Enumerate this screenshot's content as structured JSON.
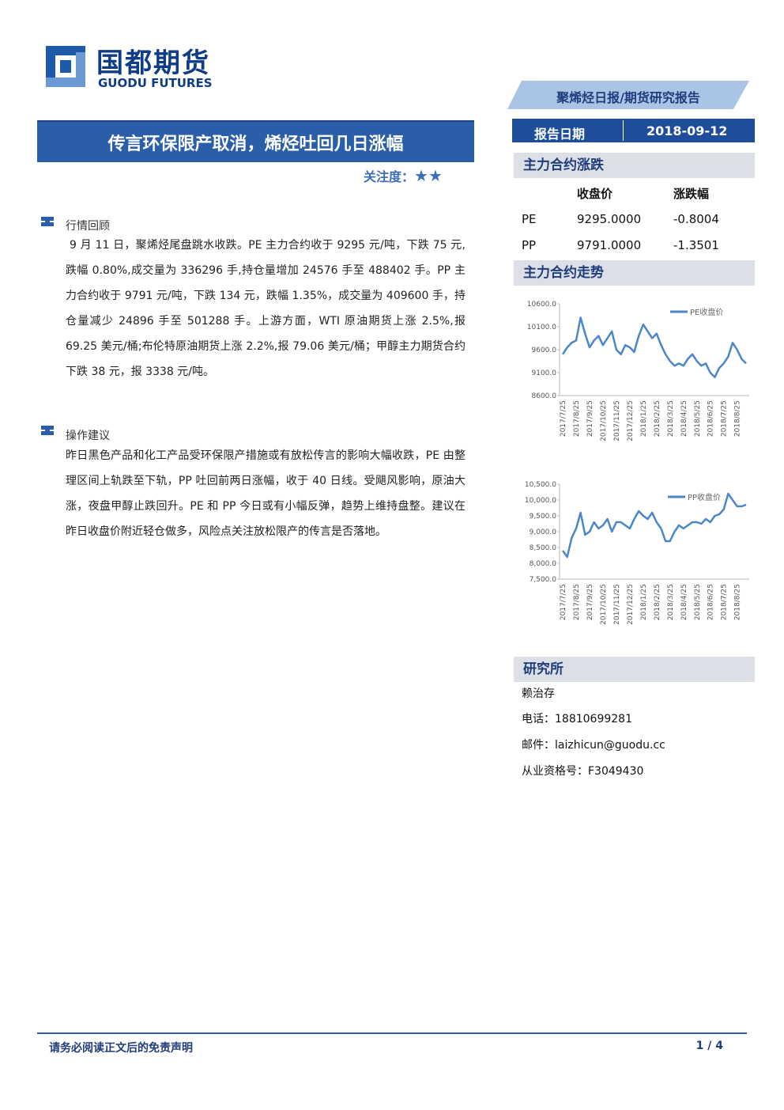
{
  "header": {
    "company_cn": "国都期货",
    "company_en": "GUODU FUTURES",
    "report_type": "聚烯烃日报/期货研究报告",
    "date_label": "报告日期",
    "date": "2018-09-12"
  },
  "title": "传言环保限产取消，烯烃吐回几日涨幅",
  "attention": {
    "label": "关注度：",
    "stars": "★★"
  },
  "sections": [
    {
      "heading": "行情回顾",
      "paragraph": "9 月 11 日，聚烯烃尾盘跳水收跌。PE 主力合约收于 9295 元/吨，下跌 75 元,跌幅 0.80%,成交量为 336296 手,持仓量增加 24576 手至 488402 手。PP 主力合约收于 9791 元/吨，下跌 134 元，跌幅 1.35%，成交量为 409600 手，持仓量减少 24896 手至 501288 手。上游方面，WTI 原油期货上涨 2.5%,报 69.25 美元/桶;布伦特原油期货上涨 2.2%,报 79.06 美元/桶；甲醇主力期货合约下跌 38 元，报 3338 元/吨。"
    },
    {
      "heading": "操作建议",
      "paragraph": "昨日黑色产品和化工产品受环保限产措施或有放松传言的影响大幅收跌，PE 由整理区间上轨跌至下轨，PP 吐回前两日涨幅，收于 40 日线。受飓风影响，原油大涨，夜盘甲醇止跌回升。PE 和 PP 今日或有小幅反弹，趋势上维持盘整。建议在昨日收盘价附近轻仓做多，风险点关注放松限产的传言是否落地。"
    }
  ],
  "sidebar": {
    "contract_heading": "主力合约涨跌",
    "columns": [
      "收盘价",
      "涨跌幅"
    ],
    "rows": [
      [
        "PE",
        "9295.0000",
        "-0.8004"
      ],
      [
        "PP",
        "9791.0000",
        "-1.3501"
      ]
    ],
    "trend_heading": "主力合约走势",
    "research": {
      "heading": "研究所",
      "lines": [
        "赖治存",
        "电话：18810699281",
        "邮件：laizhicun@guodu.cc",
        "从业资格号：F3049430"
      ]
    }
  },
  "chart_data": [
    {
      "type": "line",
      "categories": [
        "2017/7/25",
        null,
        null,
        "2017/8/25",
        null,
        null,
        "2017/9/25",
        null,
        null,
        "2017/10/25",
        null,
        null,
        "2017/11/25",
        null,
        null,
        "2017/12/25",
        null,
        null,
        "2018/1/25",
        null,
        null,
        "2018/2/25",
        null,
        null,
        "2018/3/25",
        null,
        null,
        "2018/4/25",
        null,
        null,
        "2018/5/25",
        null,
        null,
        "2018/6/25",
        null,
        null,
        "2018/7/25",
        null,
        null,
        "2018/8/25",
        null,
        null
      ],
      "series": [
        {
          "name": "PE收盘价",
          "color": "#4a86c8",
          "values": [
            9500,
            9650,
            9750,
            9800,
            10300,
            9950,
            9650,
            9800,
            9900,
            9700,
            9850,
            10000,
            9600,
            9500,
            9700,
            9650,
            9550,
            9900,
            10150,
            10000,
            9850,
            9950,
            9700,
            9500,
            9350,
            9250,
            9300,
            9250,
            9400,
            9500,
            9350,
            9250,
            9300,
            9100,
            9000,
            9200,
            9300,
            9450,
            9750,
            9600,
            9400,
            9300
          ]
        }
      ],
      "ylim": [
        8600,
        10600
      ],
      "yticks": [
        {
          "value": 8600,
          "label": "8600.0"
        },
        {
          "value": 9100,
          "label": "9100.0"
        },
        {
          "value": 9600,
          "label": "9600.0"
        },
        {
          "value": 10100,
          "label": "10100.0"
        },
        {
          "value": 10600,
          "label": "10600.0"
        }
      ],
      "grid": false,
      "legend": "top-right"
    },
    {
      "type": "line",
      "categories": [
        "2017/7/25",
        null,
        null,
        "2017/8/25",
        null,
        null,
        "2017/9/25",
        null,
        null,
        "2017/10/25",
        null,
        null,
        "2017/11/25",
        null,
        null,
        "2017/12/25",
        null,
        null,
        "2018/1/25",
        null,
        null,
        "2018/2/25",
        null,
        null,
        "2018/3/25",
        null,
        null,
        "2018/4/25",
        null,
        null,
        "2018/5/25",
        null,
        null,
        "2018/6/25",
        null,
        null,
        "2018/7/25",
        null,
        null,
        "2018/8/25",
        null,
        null
      ],
      "series": [
        {
          "name": "PP收盘价",
          "color": "#4a86c8",
          "values": [
            8400,
            8200,
            8800,
            9100,
            9600,
            8900,
            9000,
            9300,
            9100,
            9200,
            9400,
            9000,
            9300,
            9300,
            9200,
            9100,
            9400,
            9650,
            9500,
            9400,
            9600,
            9300,
            9100,
            8700,
            8700,
            9000,
            9200,
            9100,
            9200,
            9300,
            9300,
            9250,
            9400,
            9300,
            9500,
            9550,
            9700,
            10200,
            10000,
            9800,
            9800,
            9850
          ]
        }
      ],
      "ylim": [
        7500,
        10500
      ],
      "yticks": [
        {
          "value": 7500,
          "label": "7,500.0"
        },
        {
          "value": 8000,
          "label": "8,000.0"
        },
        {
          "value": 8500,
          "label": "8,500.0"
        },
        {
          "value": 9000,
          "label": "9,000.0"
        },
        {
          "value": 9500,
          "label": "9,500.0"
        },
        {
          "value": 10000,
          "label": "10,000.0"
        },
        {
          "value": 10500,
          "label": "10,500.0"
        }
      ],
      "grid": false,
      "legend": "top-right"
    }
  ],
  "footer": {
    "disclaimer": "请务必阅读正文后的免责声明",
    "page": "1 / 4"
  }
}
